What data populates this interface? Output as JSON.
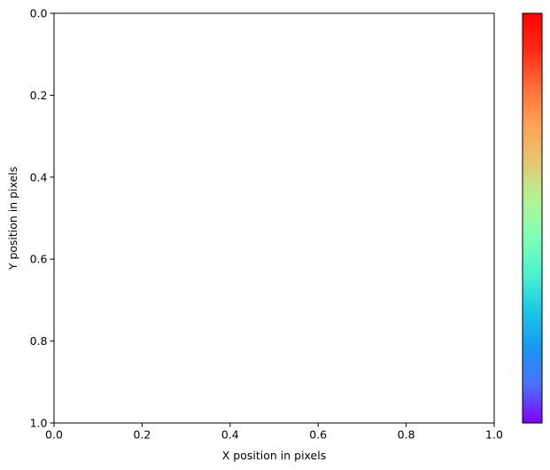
{
  "chart_data": {
    "type": "heatmap",
    "title": "",
    "xlabel": "X position in pixels",
    "ylabel": "Y position in pixels",
    "xlim": [
      0.0,
      1.0
    ],
    "ylim": [
      1.0,
      0.0
    ],
    "y_inverted": true,
    "x_ticks": [
      "0.0",
      "0.2",
      "0.4",
      "0.6",
      "0.8",
      "1.0"
    ],
    "x_tick_values": [
      0.0,
      0.2,
      0.4,
      0.6,
      0.8,
      1.0
    ],
    "y_ticks": [
      "0.0",
      "0.2",
      "0.4",
      "0.6",
      "0.8",
      "1.0"
    ],
    "y_tick_values": [
      0.0,
      0.2,
      0.4,
      0.6,
      0.8,
      1.0
    ],
    "values": [],
    "grid": false,
    "colorbar": {
      "colormap": "rainbow",
      "orientation": "vertical",
      "placement": "right",
      "tick_labels": []
    },
    "colors": {
      "colormap_stops": [
        "#8000ff",
        "#4c6ff8",
        "#1996f3",
        "#1ac7e6",
        "#4cf2ce",
        "#80ffb4",
        "#b2f396",
        "#e6c770",
        "#ffa256",
        "#ff6e3a",
        "#ff2a15",
        "#ff0000"
      ]
    }
  }
}
